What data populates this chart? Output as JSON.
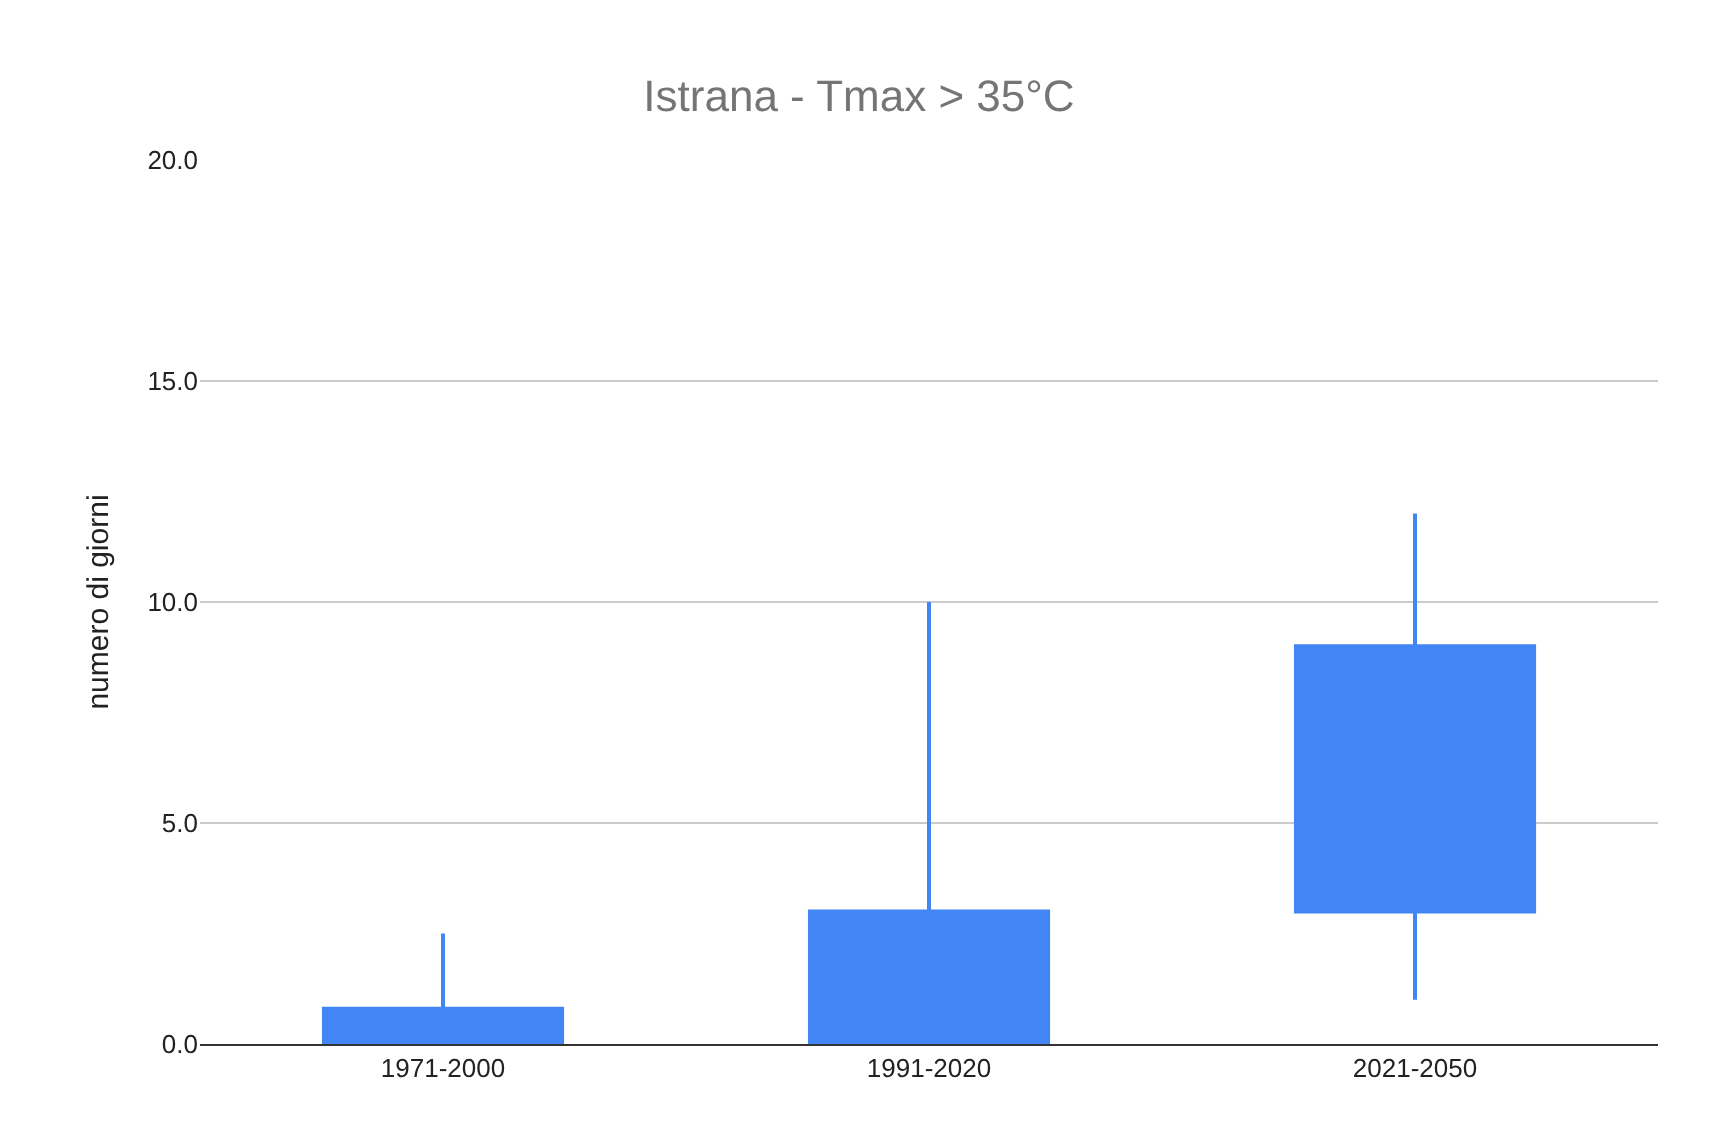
{
  "chart_data": {
    "type": "candlestick",
    "title": "Istrana - Tmax > 35°C",
    "ylabel": "numero di giorni",
    "categories": [
      "1971-2000",
      "1991-2020",
      "2021-2050"
    ],
    "ohlc": [
      [
        0.0,
        2.5,
        0.0,
        0.8
      ],
      [
        0.0,
        10.0,
        0.0,
        3.0
      ],
      [
        3.0,
        12.0,
        1.0,
        9.0
      ]
    ],
    "color": "#4285f4",
    "ylim": [
      0,
      20
    ],
    "yticks": [
      {
        "value": 0,
        "label": "0.0"
      },
      {
        "value": 5,
        "label": "5.0"
      },
      {
        "value": 10,
        "label": "10.0"
      },
      {
        "value": 15,
        "label": "15.0"
      },
      {
        "value": 20,
        "label": "20.0"
      }
    ],
    "grid": "y",
    "legend": false
  }
}
